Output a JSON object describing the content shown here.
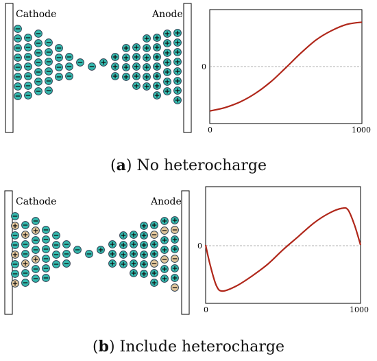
{
  "panels": [
    {
      "id": "a",
      "caption_letter": "a",
      "caption_text": "No heterocharge",
      "cathode_label": "Cathode",
      "anode_label": "Anode",
      "ion_colors": {
        "anion": "#34b8ad",
        "cation": "#34b8ad",
        "heterocharge": "#e0c59b"
      }
    },
    {
      "id": "b",
      "caption_letter": "b",
      "caption_text": "Include heterocharge",
      "cathode_label": "Cathode",
      "anode_label": "Anode",
      "ion_colors": {
        "anion": "#34b8ad",
        "cation": "#34b8ad",
        "heterocharge": "#e0c59b"
      }
    }
  ],
  "colors": {
    "curve": "#b0271a",
    "zero_line": "#999999",
    "frame": "#000000"
  },
  "chart_data": [
    {
      "type": "line",
      "title": "",
      "xlabel": "",
      "ylabel": "",
      "x_ticks": [
        "0",
        "1000"
      ],
      "y_ticks": [
        "0"
      ],
      "xlim": [
        0,
        1000
      ],
      "ylim": [
        -1,
        1
      ],
      "zero_line": true,
      "series": [
        {
          "x": [
            0,
            100,
            200,
            300,
            400,
            500,
            600,
            700,
            800,
            900,
            1000
          ],
          "y": [
            -0.78,
            -0.72,
            -0.62,
            -0.47,
            -0.27,
            -0.02,
            0.24,
            0.47,
            0.63,
            0.74,
            0.78
          ]
        }
      ]
    },
    {
      "type": "line",
      "title": "",
      "xlabel": "",
      "ylabel": "",
      "x_ticks": [
        "0",
        "1000"
      ],
      "y_ticks": [
        "0"
      ],
      "xlim": [
        0,
        1000
      ],
      "ylim": [
        -1,
        1
      ],
      "zero_line": true,
      "series": [
        {
          "x": [
            0,
            30,
            70,
            110,
            200,
            300,
            400,
            500,
            600,
            700,
            800,
            880,
            920,
            960,
            1000
          ],
          "y": [
            0,
            -0.35,
            -0.7,
            -0.79,
            -0.7,
            -0.53,
            -0.33,
            -0.08,
            0.15,
            0.38,
            0.55,
            0.63,
            0.6,
            0.35,
            0
          ]
        }
      ]
    }
  ]
}
